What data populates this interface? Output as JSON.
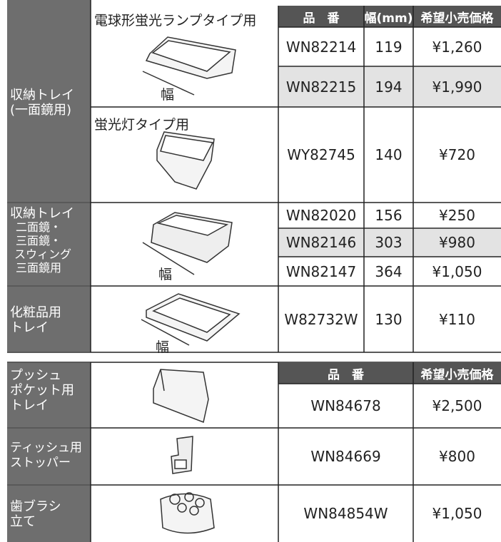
{
  "top_section": {
    "headers": [
      "品　番",
      "幅(mm)",
      "希望小売価格"
    ],
    "groups": [
      {
        "label": [
          "収納トレイ",
          "(一面鏡用)"
        ],
        "subgroups": [
          {
            "title": "電球形蛍光ランプタイプ用",
            "width_label": "幅",
            "rows": [
              [
                "WN82214",
                119,
                "¥1,260"
              ],
              [
                "WN82215",
                194,
                "¥1,990"
              ]
            ]
          },
          {
            "title": "蛍光灯タイプ用",
            "rows": [
              [
                "WY82745",
                140,
                "¥720"
              ]
            ]
          }
        ]
      },
      {
        "label": [
          "収納トレイ",
          "二面鏡・",
          "三面鏡・",
          "スウィング",
          "三面鏡用"
        ],
        "width_label": "幅",
        "rows": [
          [
            "WN82020",
            156,
            "¥250"
          ],
          [
            "WN82146",
            303,
            "¥980"
          ],
          [
            "WN82147",
            364,
            "¥1,050"
          ]
        ]
      },
      {
        "label": [
          "化粧品用",
          "トレイ"
        ],
        "width_label": "幅",
        "rows": [
          [
            "W82732W",
            130,
            "¥110"
          ]
        ]
      }
    ]
  },
  "bottom_section": {
    "headers": [
      "品　番",
      "希望小売価格"
    ],
    "rows": [
      {
        "label": [
          "プッシュ",
          "ポケット用",
          "トレイ"
        ],
        "code": "WN84678",
        "price": "¥2,500"
      },
      {
        "label": [
          "ティッシュ用",
          "ストッパー"
        ],
        "code": "WN84669",
        "price": "¥800"
      },
      {
        "label": [
          "歯ブラシ",
          "立て"
        ],
        "code": "WN84854W",
        "price": "¥1,050"
      }
    ]
  }
}
